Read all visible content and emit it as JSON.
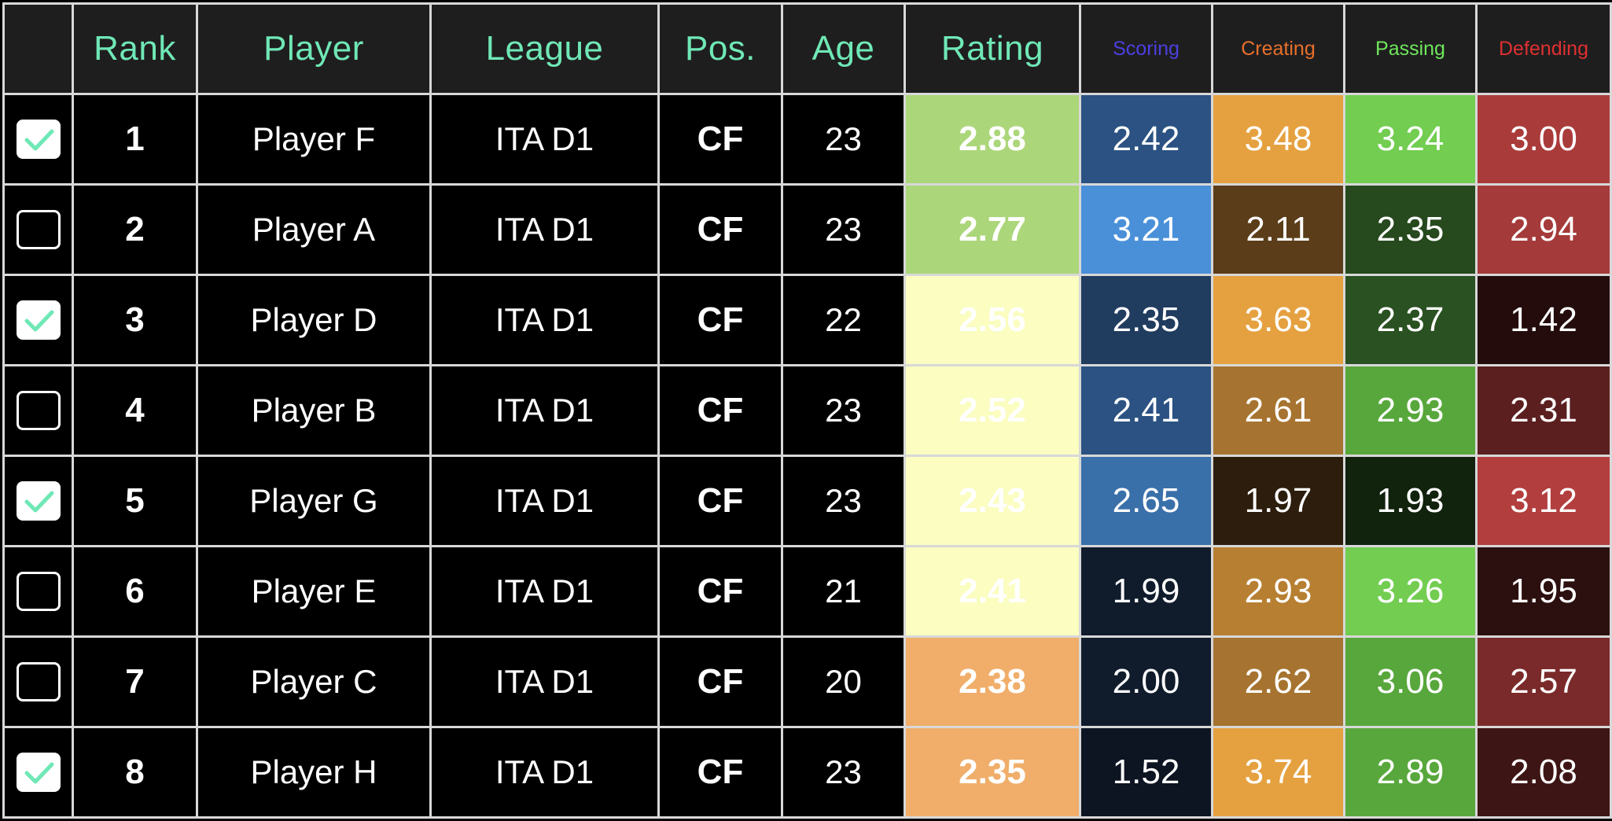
{
  "header": {
    "columns": [
      "",
      "Rank",
      "Player",
      "League",
      "Pos.",
      "Age",
      "Rating",
      "Scoring",
      "Creating",
      "Passing",
      "Defending"
    ],
    "metric_colors": {
      "Scoring": "#4a40e0",
      "Creating": "#e8702a",
      "Passing": "#6ee85a",
      "Defending": "#e03030"
    },
    "text_color": "#6fe8b6"
  },
  "checkbox_accent": "#6fe8b6",
  "rows": [
    {
      "checked": true,
      "rank": "1",
      "player": "Player F",
      "league": "ITA D1",
      "pos": "CF",
      "age": "23",
      "rating": "2.88",
      "scoring": "2.42",
      "creating": "3.48",
      "passing": "3.24",
      "defending": "3.00",
      "colors": {
        "rating": "#acd67a",
        "scoring": "#2b5282",
        "creating": "#e5a140",
        "passing": "#72cd51",
        "defending": "#aa3b3b"
      }
    },
    {
      "checked": false,
      "rank": "2",
      "player": "Player A",
      "league": "ITA D1",
      "pos": "CF",
      "age": "23",
      "rating": "2.77",
      "scoring": "3.21",
      "creating": "2.11",
      "passing": "2.35",
      "defending": "2.94",
      "colors": {
        "rating": "#acd67a",
        "scoring": "#4a90d9",
        "creating": "#5b3d19",
        "passing": "#26491d",
        "defending": "#a53a3a"
      }
    },
    {
      "checked": true,
      "rank": "3",
      "player": "Player D",
      "league": "ITA D1",
      "pos": "CF",
      "age": "22",
      "rating": "2.56",
      "scoring": "2.35",
      "creating": "3.63",
      "passing": "2.37",
      "defending": "1.42",
      "colors": {
        "rating": "#fbfdc1",
        "scoring": "#203c5e",
        "creating": "#e5a140",
        "passing": "#2a5121",
        "defending": "#240c0c"
      }
    },
    {
      "checked": false,
      "rank": "4",
      "player": "Player B",
      "league": "ITA D1",
      "pos": "CF",
      "age": "23",
      "rating": "2.52",
      "scoring": "2.41",
      "creating": "2.61",
      "passing": "2.93",
      "defending": "2.31",
      "colors": {
        "rating": "#fbfdc1",
        "scoring": "#2b5282",
        "creating": "#a67430",
        "passing": "#58a73c",
        "defending": "#5c1f1f"
      }
    },
    {
      "checked": true,
      "rank": "5",
      "player": "Player G",
      "league": "ITA D1",
      "pos": "CF",
      "age": "23",
      "rating": "2.43",
      "scoring": "2.65",
      "creating": "1.97",
      "passing": "1.93",
      "defending": "3.12",
      "colors": {
        "rating": "#fbfdc1",
        "scoring": "#3a70aa",
        "creating": "#2c1d0c",
        "passing": "#11220d",
        "defending": "#b33e3e"
      }
    },
    {
      "checked": false,
      "rank": "6",
      "player": "Player E",
      "league": "ITA D1",
      "pos": "CF",
      "age": "21",
      "rating": "2.41",
      "scoring": "1.99",
      "creating": "2.93",
      "passing": "3.26",
      "defending": "1.95",
      "colors": {
        "rating": "#fbfdc1",
        "scoring": "#101c2c",
        "creating": "#b77f32",
        "passing": "#72cd51",
        "defending": "#2c1010"
      }
    },
    {
      "checked": false,
      "rank": "7",
      "player": "Player C",
      "league": "ITA D1",
      "pos": "CF",
      "age": "20",
      "rating": "2.38",
      "scoring": "2.00",
      "creating": "2.62",
      "passing": "3.06",
      "defending": "2.57",
      "colors": {
        "rating": "#f0ae6a",
        "scoring": "#101c2c",
        "creating": "#a67430",
        "passing": "#58a73c",
        "defending": "#7a2a2a"
      }
    },
    {
      "checked": true,
      "rank": "8",
      "player": "Player H",
      "league": "ITA D1",
      "pos": "CF",
      "age": "23",
      "rating": "2.35",
      "scoring": "1.52",
      "creating": "3.74",
      "passing": "2.89",
      "defending": "2.08",
      "colors": {
        "rating": "#f0ae6a",
        "scoring": "#0d1522",
        "creating": "#e5a140",
        "passing": "#58a73c",
        "defending": "#3e1515"
      }
    }
  ]
}
